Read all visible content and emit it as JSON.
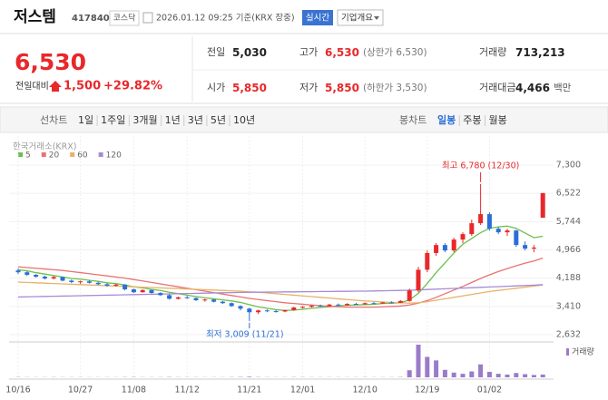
{
  "header": {
    "name": "저스템",
    "code": "417840",
    "market": "코스닥",
    "timestamp": "2026.01.12 09:25 기준(KRX 장중)",
    "realtime": "실시간",
    "company_info": "기업개요"
  },
  "quote": {
    "price": "6,530",
    "change_label": "전일대비",
    "change": "1,500",
    "change_rate": "+29.82%",
    "stats": [
      {
        "label": "전일",
        "value": "5,030"
      },
      {
        "label": "고가",
        "value": "6,530",
        "note": "(상한가 6,530)"
      },
      {
        "label": "거래량",
        "value": "713,213"
      },
      {
        "label": "시가",
        "value": "5,850"
      },
      {
        "label": "저가",
        "value": "5,850",
        "note": "(하한가 3,530)"
      },
      {
        "label": "거래대금",
        "value": "4,466",
        "unit": "백만"
      }
    ]
  },
  "tabs": {
    "line_chart": "선차트",
    "line_periods": [
      "1일",
      "1주일",
      "3개월",
      "1년",
      "3년",
      "5년",
      "10년"
    ],
    "candle_chart": "봉차트",
    "candle_periods": [
      "일봉",
      "주봉",
      "월봉"
    ],
    "active": 0
  },
  "chart_data": {
    "type": "candlestick",
    "source": "한국거래소(KRX)",
    "categories": [
      "10/16",
      null,
      null,
      null,
      null,
      null,
      null,
      "10/27",
      null,
      null,
      null,
      null,
      null,
      "11/08",
      null,
      null,
      null,
      null,
      null,
      "11/12",
      null,
      null,
      null,
      null,
      null,
      null,
      "11/21",
      null,
      null,
      null,
      null,
      null,
      "12/01",
      null,
      null,
      null,
      null,
      null,
      null,
      "12/10",
      null,
      null,
      null,
      null,
      null,
      null,
      "12/19",
      null,
      null,
      null,
      null,
      null,
      null,
      "01/02",
      null,
      null,
      null,
      null,
      null,
      null
    ],
    "open": [
      4400,
      4350,
      4280,
      4230,
      4180,
      4220,
      4120,
      4080,
      4100,
      4060,
      4020,
      3980,
      4010,
      3880,
      3800,
      3860,
      3780,
      3720,
      3620,
      3660,
      3640,
      3580,
      3600,
      3540,
      3500,
      3420,
      3350,
      3250,
      3300,
      3280,
      3270,
      3310,
      3380,
      3400,
      3430,
      3420,
      3460,
      3440,
      3480,
      3470,
      3500,
      3490,
      3520,
      3510,
      3560,
      3850,
      4420,
      4880,
      5100,
      4950,
      5250,
      5400,
      5700,
      5950,
      5550,
      5450,
      5500,
      5100,
      5000,
      5850
    ],
    "high": [
      4450,
      4380,
      4300,
      4260,
      4250,
      4230,
      4150,
      4120,
      4130,
      4090,
      4050,
      4030,
      4020,
      3900,
      3880,
      3870,
      3800,
      3750,
      3680,
      3700,
      3660,
      3620,
      3610,
      3560,
      3520,
      3440,
      3370,
      3320,
      3330,
      3310,
      3320,
      3400,
      3420,
      3450,
      3460,
      3480,
      3490,
      3500,
      3510,
      3520,
      3530,
      3540,
      3550,
      3580,
      3900,
      4500,
      4950,
      5150,
      5150,
      5300,
      5450,
      5800,
      6780,
      6000,
      5600,
      5550,
      5520,
      5200,
      5100,
      6530
    ],
    "low": [
      4300,
      4250,
      4200,
      4150,
      4150,
      4100,
      4050,
      4030,
      4040,
      4000,
      3950,
      3960,
      3850,
      3780,
      3790,
      3760,
      3700,
      3600,
      3600,
      3620,
      3560,
      3540,
      3520,
      3480,
      3400,
      3300,
      3009,
      3200,
      3250,
      3240,
      3250,
      3290,
      3350,
      3380,
      3400,
      3410,
      3420,
      3430,
      3450,
      3460,
      3470,
      3480,
      3490,
      3500,
      3540,
      3800,
      4350,
      4800,
      4900,
      4900,
      5150,
      5350,
      5650,
      5500,
      5400,
      5350,
      5050,
      4950,
      4900,
      5850
    ],
    "close": [
      4350,
      4280,
      4230,
      4180,
      4220,
      4120,
      4080,
      4100,
      4060,
      4020,
      3980,
      4010,
      3880,
      3800,
      3860,
      3780,
      3720,
      3620,
      3660,
      3640,
      3580,
      3600,
      3540,
      3500,
      3420,
      3350,
      3250,
      3300,
      3280,
      3270,
      3310,
      3380,
      3400,
      3430,
      3420,
      3460,
      3440,
      3480,
      3470,
      3500,
      3490,
      3520,
      3510,
      3560,
      3850,
      4420,
      4880,
      5100,
      4950,
      5250,
      5400,
      5700,
      5950,
      5550,
      5450,
      5500,
      5100,
      5000,
      5030,
      6530
    ],
    "up_color": "#e8282b",
    "down_color": "#2a6fd6",
    "moving_averages": [
      {
        "name": "5",
        "color": "#6bbf4e",
        "values": [
          4420,
          4390,
          4340,
          4300,
          4260,
          4220,
          4180,
          4160,
          4130,
          4100,
          4060,
          4040,
          4000,
          3950,
          3920,
          3880,
          3850,
          3800,
          3760,
          3720,
          3680,
          3650,
          3620,
          3590,
          3560,
          3520,
          3460,
          3400,
          3360,
          3320,
          3300,
          3310,
          3330,
          3360,
          3380,
          3400,
          3430,
          3440,
          3450,
          3460,
          3470,
          3490,
          3500,
          3510,
          3590,
          3770,
          4040,
          4340,
          4610,
          4880,
          5120,
          5280,
          5440,
          5560,
          5600,
          5620,
          5560,
          5430,
          5300,
          5340
        ]
      },
      {
        "name": "20",
        "color": "#e8736f",
        "values": [
          4500,
          4480,
          4460,
          4440,
          4420,
          4400,
          4370,
          4340,
          4310,
          4280,
          4250,
          4220,
          4190,
          4150,
          4110,
          4070,
          4030,
          3990,
          3950,
          3910,
          3870,
          3830,
          3790,
          3750,
          3710,
          3670,
          3630,
          3600,
          3570,
          3540,
          3510,
          3490,
          3470,
          3450,
          3430,
          3410,
          3400,
          3390,
          3390,
          3390,
          3390,
          3400,
          3410,
          3420,
          3450,
          3500,
          3570,
          3660,
          3760,
          3860,
          3960,
          4070,
          4180,
          4280,
          4370,
          4450,
          4530,
          4600,
          4660,
          4740
        ]
      },
      {
        "name": "60",
        "color": "#e8b26a",
        "values": [
          4080,
          4070,
          4060,
          4050,
          4040,
          4030,
          4020,
          4010,
          4000,
          3990,
          3980,
          3970,
          3960,
          3950,
          3940,
          3930,
          3920,
          3910,
          3900,
          3890,
          3880,
          3870,
          3860,
          3850,
          3840,
          3830,
          3810,
          3800,
          3780,
          3760,
          3740,
          3720,
          3700,
          3680,
          3660,
          3640,
          3620,
          3600,
          3580,
          3560,
          3550,
          3530,
          3520,
          3510,
          3500,
          3510,
          3540,
          3580,
          3620,
          3660,
          3700,
          3740,
          3780,
          3820,
          3850,
          3880,
          3910,
          3940,
          3970,
          4000
        ]
      },
      {
        "name": "120",
        "color": "#a58bd6",
        "values": [
          3670,
          3675,
          3680,
          3685,
          3690,
          3695,
          3700,
          3705,
          3710,
          3715,
          3720,
          3725,
          3730,
          3735,
          3740,
          3745,
          3750,
          3755,
          3760,
          3765,
          3770,
          3775,
          3780,
          3785,
          3790,
          3795,
          3800,
          3800,
          3805,
          3805,
          3810,
          3810,
          3815,
          3815,
          3820,
          3820,
          3825,
          3825,
          3830,
          3830,
          3835,
          3840,
          3845,
          3850,
          3855,
          3865,
          3875,
          3885,
          3895,
          3905,
          3915,
          3925,
          3935,
          3945,
          3955,
          3965,
          3975,
          3985,
          3995,
          4010
        ]
      }
    ],
    "volume": {
      "name": "거래량",
      "color": "#9b7bc9",
      "values": [
        60000,
        50000,
        40000,
        45000,
        55000,
        50000,
        40000,
        45000,
        35000,
        40000,
        45000,
        40000,
        60000,
        70000,
        50000,
        45000,
        50000,
        80000,
        50000,
        40000,
        50000,
        40000,
        45000,
        40000,
        60000,
        90000,
        150000,
        70000,
        50000,
        40000,
        45000,
        60000,
        50000,
        45000,
        40000,
        50000,
        45000,
        40000,
        45000,
        50000,
        40000,
        45000,
        50000,
        80000,
        1800000,
        8300000,
        5200000,
        4300000,
        1900000,
        1200000,
        900000,
        1500000,
        3300000,
        1400000,
        900000,
        700000,
        1100000,
        800000,
        600000,
        713213
      ]
    },
    "max_label": "최고 6,780 (12/30)",
    "min_label": "최저 3,009 (11/21)",
    "ylim": [
      2632,
      7300
    ],
    "yticks": [
      {
        "value": 2632,
        "label": "2,632"
      },
      {
        "value": 3410,
        "label": "3,410"
      },
      {
        "value": 4188,
        "label": "4,188"
      },
      {
        "value": 4966,
        "label": "4,966"
      },
      {
        "value": 5744,
        "label": "5,744"
      },
      {
        "value": 6522,
        "label": "6,522"
      },
      {
        "value": 7300,
        "label": "7,300"
      }
    ]
  }
}
